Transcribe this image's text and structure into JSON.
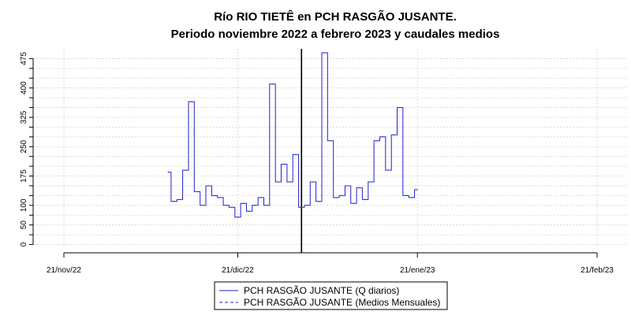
{
  "chart_data": {
    "type": "line",
    "title": "Río RIO TIETÊ en PCH RASGÃO JUSANTE.",
    "subtitle": "Periodo noviembre 2022 a febrero 2023 y caudales medios",
    "xlabel": "",
    "ylabel": "",
    "x_ticks": [
      "21/nov/22",
      "21/dic/22",
      "21/ene/23",
      "21/feb/23"
    ],
    "y_ticks": [
      0,
      25,
      50,
      75,
      100,
      125,
      150,
      175,
      200,
      225,
      250,
      275,
      300,
      325,
      350,
      375,
      400,
      425,
      450,
      475
    ],
    "y_tick_labels": [
      "0",
      "50",
      "100",
      "175",
      "250",
      "325",
      "400",
      "475"
    ],
    "xlim": [
      "2022-11-21",
      "2023-02-21"
    ],
    "ylim": [
      -5,
      500
    ],
    "grid": true,
    "reference_line": "2023-01-01",
    "legend_position": "bottom",
    "series": [
      {
        "name": "PCH RASGÃO JUSANTE (Q diarios)",
        "color": "#2222cc",
        "dash": "solid",
        "x": [
          "2022-12-09",
          "2022-12-10",
          "2022-12-11",
          "2022-12-12",
          "2022-12-13",
          "2022-12-14",
          "2022-12-15",
          "2022-12-16",
          "2022-12-17",
          "2022-12-18",
          "2022-12-19",
          "2022-12-20",
          "2022-12-21",
          "2022-12-22",
          "2022-12-23",
          "2022-12-24",
          "2022-12-25",
          "2022-12-26",
          "2022-12-27",
          "2022-12-28",
          "2022-12-29",
          "2022-12-30",
          "2022-12-31",
          "2023-01-01",
          "2023-01-02",
          "2023-01-03",
          "2023-01-04",
          "2023-01-05",
          "2023-01-06",
          "2023-01-07",
          "2023-01-08",
          "2023-01-09",
          "2023-01-10",
          "2023-01-11",
          "2023-01-12",
          "2023-01-13",
          "2023-01-14",
          "2023-01-15",
          "2023-01-16",
          "2023-01-17",
          "2023-01-18",
          "2023-01-19",
          "2023-01-20",
          "2023-01-21"
        ],
        "y": [
          185,
          110,
          115,
          190,
          365,
          135,
          100,
          150,
          125,
          120,
          100,
          95,
          70,
          105,
          85,
          100,
          120,
          100,
          410,
          160,
          205,
          160,
          230,
          95,
          100,
          160,
          110,
          490,
          265,
          120,
          125,
          150,
          105,
          145,
          115,
          160,
          265,
          275,
          190,
          280,
          350,
          125,
          120,
          140
        ]
      },
      {
        "name": "PCH RASGÃO JUSANTE (Medios Mensuales)",
        "color": "#2222cc",
        "dash": "dashed",
        "x": [],
        "y": []
      }
    ]
  }
}
